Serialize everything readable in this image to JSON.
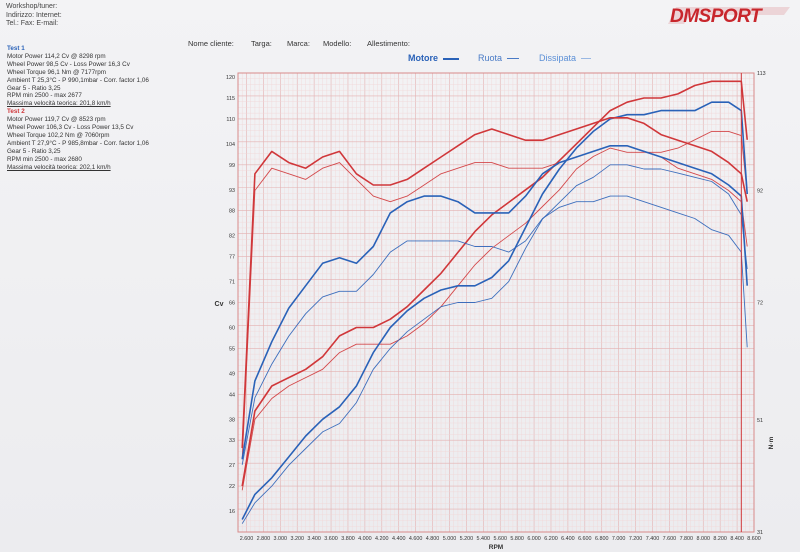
{
  "header": {
    "line1": "Workshop/tuner:",
    "line2": "Indirizzo:  Internet:",
    "line3": "Tel.:  Fax:  E-mail:"
  },
  "brand": {
    "text": "DMSPORT",
    "color": "#c8262c"
  },
  "vehicle_fields": {
    "cliente": "Nome cliente:",
    "targa": "Targa:",
    "marca": "Marca:",
    "modello": "Modello:",
    "allestimento": "Allestimento:"
  },
  "legend": {
    "motore": "Motore",
    "ruota": "Ruota",
    "dissipata": "Dissipata"
  },
  "tests": {
    "t1": {
      "title": "Test 1",
      "lines": [
        "Motor Power 114,2 Cv  @ 8298 rpm",
        "Wheel Power 98,5 Cv  - Loss Power 16,3 Cv",
        "Wheel Torque 96,1 Nm  @ 7177rpm",
        "Ambient T 25,3°C - P 990,1mbar - Corr. factor 1,06",
        "Gear 5 - Ratio 3,25",
        "RPM min 2500 - max 2677"
      ],
      "speed": "Massima velocità teorica: 201,8 km/h"
    },
    "t2": {
      "title": "Test 2",
      "lines": [
        "Motor Power 119,7 Cv  @ 8523 rpm",
        "Wheel Power 106,3 Cv  - Loss Power 13,5 Cv",
        "Wheel Torque 102,2 Nm  @ 7060rpm",
        "Ambient T 27,9°C - P 985,8mbar - Corr. factor 1,06",
        "Gear 5 - Ratio 3,25",
        "RPM min 2500 - max 2680"
      ],
      "speed": "Massima velocità teorica: 202,1 km/h"
    }
  },
  "colors": {
    "test1": "#2a62b8",
    "test2": "#d0373a",
    "grid_minor": "#f1d6d6",
    "grid_major": "#e4b1b1"
  },
  "chart_data": {
    "type": "line",
    "xlabel": "RPM",
    "ylabel_left": "Cv",
    "ylabel_right": "N·m",
    "xlim": [
      2500,
      8600
    ],
    "ylim_left": [
      11,
      121
    ],
    "ylim_right": [
      31,
      113
    ],
    "x_ticks": [
      "2.600",
      "2.800",
      "3.000",
      "3.200",
      "3.400",
      "3.600",
      "3.800",
      "4.000",
      "4.200",
      "4.400",
      "4.600",
      "4.800",
      "5.000",
      "5.200",
      "5.400",
      "5.600",
      "5.800",
      "6.000",
      "6.200",
      "6.400",
      "6.600",
      "6.800",
      "7.000",
      "7.200",
      "7.400",
      "7.600",
      "7.800",
      "8.000",
      "8.200",
      "8.400",
      "8.600"
    ],
    "y_ticks_left": [
      "16",
      "22",
      "27",
      "33",
      "38",
      "44",
      "49",
      "55",
      "60",
      "66",
      "71",
      "77",
      "82",
      "88",
      "93",
      "99",
      "104",
      "110",
      "115",
      "120"
    ],
    "y_ticks_right": [
      "31",
      "51",
      "72",
      "92",
      "113"
    ],
    "x": [
      2550,
      2700,
      2900,
      3100,
      3300,
      3500,
      3700,
      3900,
      4100,
      4300,
      4500,
      4700,
      4900,
      5100,
      5300,
      5500,
      5700,
      5900,
      6100,
      6300,
      6500,
      6700,
      6900,
      7100,
      7300,
      7500,
      7700,
      7900,
      8100,
      8300,
      8450,
      8520
    ],
    "series": [
      {
        "test": "2",
        "axis": "left",
        "weight": "bold",
        "values": [
          22,
          40,
          46,
          48,
          50,
          53,
          58,
          60,
          60,
          62,
          65,
          69,
          73,
          78,
          83,
          87,
          90,
          93,
          96,
          100,
          104,
          108,
          112,
          114,
          115,
          115,
          116,
          118,
          119,
          119,
          119,
          105
        ]
      },
      {
        "test": "2",
        "axis": "left",
        "weight": "thin",
        "values": [
          21,
          38,
          43,
          46,
          48,
          50,
          54,
          56,
          56,
          56,
          58,
          61,
          65,
          70,
          75,
          79,
          82,
          85,
          89,
          93,
          98,
          101,
          103,
          102,
          102,
          102,
          103,
          105,
          107,
          107,
          106,
          92
        ]
      },
      {
        "test": "1",
        "axis": "left",
        "weight": "bold",
        "values": [
          14,
          20,
          24,
          29,
          34,
          38,
          41,
          46,
          54,
          60,
          64,
          67,
          69,
          70,
          70,
          72,
          76,
          84,
          92,
          98,
          103,
          107,
          110,
          111,
          111,
          112,
          112,
          112,
          114,
          114,
          112,
          92
        ]
      },
      {
        "test": "1",
        "axis": "left",
        "weight": "thin",
        "values": [
          13,
          18,
          22,
          27,
          31,
          35,
          37,
          42,
          50,
          55,
          59,
          62,
          65,
          66,
          66,
          67,
          71,
          79,
          86,
          90,
          94,
          96,
          99,
          99,
          98,
          98,
          97,
          96,
          95,
          92,
          87,
          74
        ]
      },
      {
        "test": "2",
        "axis": "right",
        "weight": "bold",
        "values": [
          46,
          95,
          99,
          97,
          96,
          98,
          99,
          95,
          93,
          93,
          94,
          96,
          98,
          100,
          102,
          103,
          102,
          101,
          101,
          102,
          103,
          104,
          105,
          105,
          104,
          102,
          101,
          100,
          99,
          97,
          95,
          90
        ]
      },
      {
        "test": "2",
        "axis": "right",
        "weight": "thin",
        "values": [
          44,
          92,
          96,
          95,
          94,
          96,
          97,
          94,
          91,
          90,
          91,
          93,
          95,
          96,
          97,
          97,
          96,
          96,
          96,
          97,
          98,
          99,
          100,
          100,
          99,
          98,
          96,
          95,
          94,
          92,
          90,
          82
        ]
      },
      {
        "test": "1",
        "axis": "right",
        "weight": "bold",
        "values": [
          44,
          58,
          65,
          71,
          75,
          79,
          80,
          79,
          82,
          88,
          90,
          91,
          91,
          90,
          88,
          88,
          88,
          91,
          95,
          97,
          98,
          99,
          100,
          100,
          99,
          98,
          97,
          96,
          95,
          93,
          91,
          75
        ]
      },
      {
        "test": "1",
        "axis": "right",
        "weight": "thin",
        "values": [
          43,
          55,
          61,
          66,
          70,
          73,
          74,
          74,
          77,
          81,
          83,
          83,
          83,
          83,
          82,
          82,
          81,
          83,
          87,
          89,
          90,
          90,
          91,
          91,
          90,
          89,
          88,
          87,
          85,
          84,
          81,
          64
        ]
      }
    ]
  }
}
